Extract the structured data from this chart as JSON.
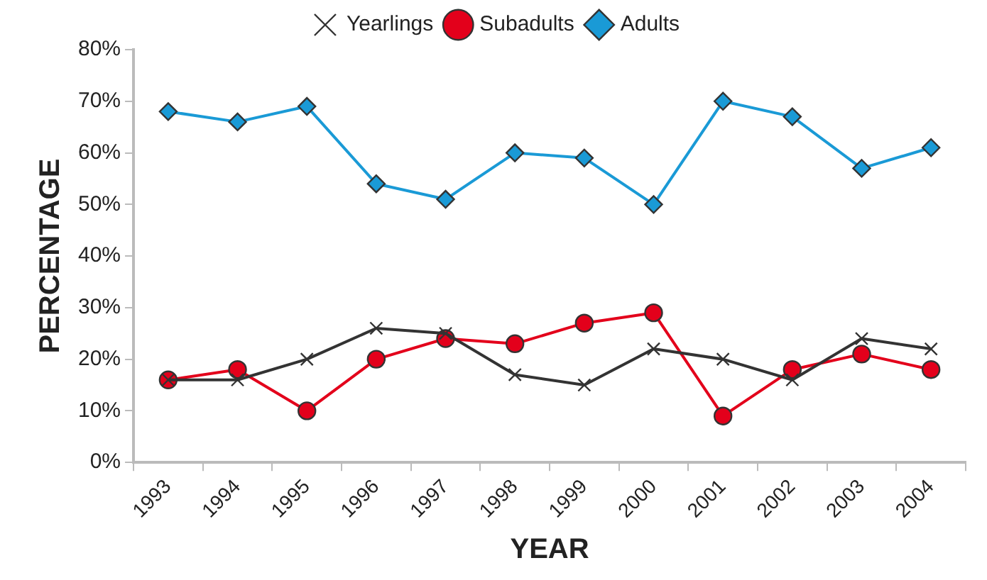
{
  "chart_data": {
    "type": "line",
    "xlabel": "YEAR",
    "ylabel": "PERCENTAGE",
    "categories": [
      "1993",
      "1994",
      "1995",
      "1996",
      "1997",
      "1998",
      "1999",
      "2000",
      "2001",
      "2002",
      "2003",
      "2004"
    ],
    "series": [
      {
        "name": "Yearlings",
        "color": "#333333",
        "marker": "cross",
        "values": [
          16,
          16,
          20,
          26,
          25,
          17,
          15,
          22,
          20,
          16,
          24,
          22
        ]
      },
      {
        "name": "Subadults",
        "color": "#e3001b",
        "marker": "circle",
        "values": [
          16,
          18,
          10,
          20,
          24,
          23,
          27,
          29,
          9,
          18,
          21,
          18
        ]
      },
      {
        "name": "Adults",
        "color": "#1a9ad6",
        "marker": "diamond",
        "values": [
          68,
          66,
          69,
          54,
          51,
          60,
          59,
          50,
          70,
          67,
          57,
          61
        ]
      }
    ],
    "ylim": [
      0,
      80
    ],
    "yticks": [
      {
        "value": 0,
        "label": "0%"
      },
      {
        "value": 10,
        "label": "10%"
      },
      {
        "value": 20,
        "label": "20%"
      },
      {
        "value": 30,
        "label": "30%"
      },
      {
        "value": 40,
        "label": "40%"
      },
      {
        "value": 50,
        "label": "50%"
      },
      {
        "value": 60,
        "label": "60%"
      },
      {
        "value": 70,
        "label": "70%"
      },
      {
        "value": 80,
        "label": "80%"
      }
    ],
    "grid": false,
    "legend": "top",
    "line_style": "solid"
  }
}
